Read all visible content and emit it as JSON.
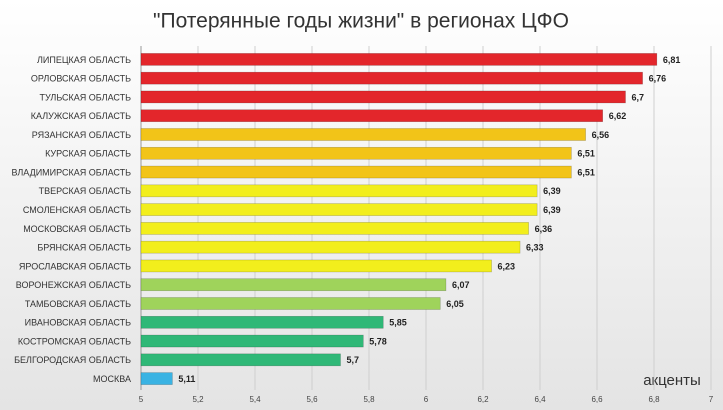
{
  "chart_data": {
    "type": "hbar",
    "title": "\"Потерянные годы жизни\" в регионах ЦФО",
    "categories": [
      "ЛИПЕЦКАЯ ОБЛАСТЬ",
      "ОРЛОВСКАЯ ОБЛАСТЬ",
      "ТУЛЬСКАЯ ОБЛАСТЬ",
      "КАЛУЖСКАЯ ОБЛАСТЬ",
      "РЯЗАНСКАЯ ОБЛАСТЬ",
      "КУРСКАЯ ОБЛАСТЬ",
      "ВЛАДИМИРСКАЯ ОБЛАСТЬ",
      "ТВЕРСКАЯ ОБЛАСТЬ",
      "СМОЛЕНСКАЯ ОБЛАСТЬ",
      "МОСКОВСКАЯ ОБЛАСТЬ",
      "БРЯНСКАЯ ОБЛАСТЬ",
      "ЯРОСЛАВСКАЯ ОБЛАСТЬ",
      "ВОРОНЕЖСКАЯ ОБЛАСТЬ",
      "ТАМБОВСКАЯ ОБЛАСТЬ",
      "ИВАНОВСКАЯ ОБЛАСТЬ",
      "КОСТРОМСКАЯ ОБЛАСТЬ",
      "БЕЛГОРОДСКАЯ ОБЛАСТЬ",
      "МОСКВА"
    ],
    "values": [
      6.81,
      6.76,
      6.7,
      6.62,
      6.56,
      6.51,
      6.51,
      6.39,
      6.39,
      6.36,
      6.33,
      6.23,
      6.07,
      6.05,
      5.85,
      5.78,
      5.7,
      5.11
    ],
    "value_labels": [
      "6,81",
      "6,76",
      "6,7",
      "6,62",
      "6,56",
      "6,51",
      "6,51",
      "6,39",
      "6,39",
      "6,36",
      "6,33",
      "6,23",
      "6,07",
      "6,05",
      "5,85",
      "5,78",
      "5,7",
      "5,11"
    ],
    "colors": [
      "#e3262b",
      "#e3262b",
      "#e3262b",
      "#e3262b",
      "#f2c418",
      "#f2c418",
      "#f2c418",
      "#f2ee1c",
      "#f2ee1c",
      "#f2ee1c",
      "#f2ee1c",
      "#f2ee1c",
      "#9fd35b",
      "#9fd35b",
      "#2fb877",
      "#2fb877",
      "#2fb877",
      "#3ab3e3"
    ],
    "xlim": [
      5,
      7
    ],
    "xticks": [
      5,
      {
        "value": 5.2,
        "label": "5,2"
      },
      {
        "value": 5.4,
        "label": "5,4"
      },
      {
        "value": 5.6,
        "label": "5,6"
      },
      {
        "value": 5.8,
        "label": "5,8"
      },
      6,
      {
        "value": 6.2,
        "label": "6,2"
      },
      {
        "value": 6.4,
        "label": "6,4"
      },
      {
        "value": 6.6,
        "label": "6,6"
      },
      {
        "value": 6.8,
        "label": "6,8"
      },
      7
    ],
    "grid": true,
    "logo": "акценты"
  }
}
